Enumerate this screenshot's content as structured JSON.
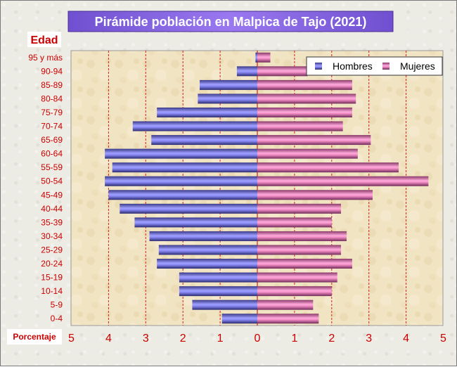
{
  "chart_data": {
    "type": "bar",
    "title": "Pirámide población en Malpica de Tajo (2021)",
    "ylabel": "Edad",
    "xlabel": "Porcentaje",
    "categories": [
      "95 y más",
      "90-94",
      "85-89",
      "80-84",
      "75-79",
      "70-74",
      "65-69",
      "60-64",
      "55-59",
      "50-54",
      "45-49",
      "40-44",
      "35-39",
      "30-34",
      "25-29",
      "20-24",
      "15-19",
      "10-14",
      "5-9",
      "0-4"
    ],
    "series": [
      {
        "name": "Hombres",
        "color": "#7070f0",
        "values": [
          0.05,
          0.55,
          1.55,
          1.6,
          2.7,
          3.35,
          2.85,
          4.1,
          3.9,
          4.1,
          4.0,
          3.7,
          3.3,
          2.9,
          2.65,
          2.7,
          2.1,
          2.1,
          1.75,
          0.95
        ]
      },
      {
        "name": "Mujeres",
        "color": "#f080c0",
        "values": [
          0.35,
          1.35,
          2.55,
          2.65,
          2.55,
          2.3,
          3.05,
          2.7,
          3.8,
          4.6,
          3.1,
          2.25,
          2.0,
          2.4,
          2.25,
          2.55,
          2.15,
          2.0,
          1.5,
          1.65
        ]
      }
    ],
    "xlim": [
      -5,
      5
    ],
    "xticks": [
      "5",
      "4",
      "3",
      "2",
      "1",
      "0",
      "1",
      "2",
      "3",
      "4",
      "5"
    ],
    "grid": true,
    "legend": "top-right"
  }
}
